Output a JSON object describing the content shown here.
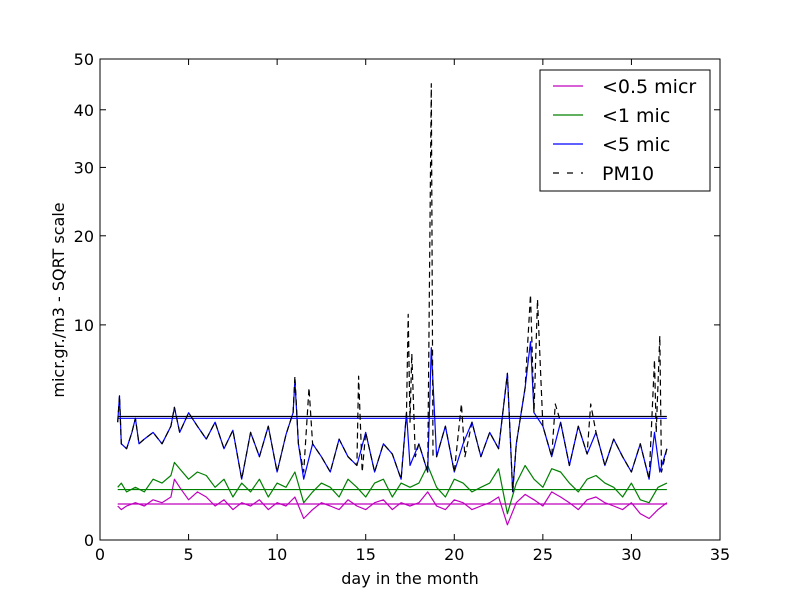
{
  "chart_data": {
    "type": "line",
    "title": "",
    "xlabel": "day in the month",
    "ylabel": "micr.gr./m3 - SQRT scale",
    "y_scale": "sqrt",
    "xlim": [
      0,
      35
    ],
    "ylim": [
      0,
      50
    ],
    "x_ticks": [
      0,
      5,
      10,
      15,
      20,
      25,
      30,
      35
    ],
    "y_ticks": [
      0,
      10,
      20,
      30,
      40,
      50
    ],
    "grid": false,
    "legend_position": "top-right",
    "series": [
      {
        "name": "<0.5 micr",
        "color": "#bf00bf",
        "style": "solid",
        "mean": 0.28,
        "x": [
          1.0,
          1.2,
          1.5,
          2.0,
          2.5,
          3.0,
          3.5,
          4.0,
          4.2,
          4.5,
          5.0,
          5.5,
          6.0,
          6.5,
          7.0,
          7.5,
          8.0,
          8.5,
          9.0,
          9.5,
          10.0,
          10.5,
          11.0,
          11.5,
          12.0,
          12.5,
          13.0,
          13.5,
          14.0,
          14.5,
          15.0,
          15.5,
          16.0,
          16.5,
          17.0,
          17.5,
          18.0,
          18.5,
          19.0,
          19.5,
          20.0,
          20.5,
          21.0,
          21.5,
          22.0,
          22.5,
          23.0,
          23.5,
          24.0,
          24.5,
          25.0,
          25.5,
          26.0,
          26.5,
          27.0,
          27.5,
          28.0,
          28.5,
          29.0,
          29.5,
          30.0,
          30.5,
          31.0,
          31.5,
          32.0
        ],
        "y": [
          0.25,
          0.2,
          0.25,
          0.3,
          0.25,
          0.35,
          0.3,
          0.4,
          0.8,
          0.6,
          0.35,
          0.5,
          0.4,
          0.25,
          0.35,
          0.2,
          0.3,
          0.25,
          0.35,
          0.2,
          0.3,
          0.25,
          0.4,
          0.1,
          0.2,
          0.3,
          0.25,
          0.2,
          0.35,
          0.25,
          0.2,
          0.3,
          0.35,
          0.2,
          0.3,
          0.25,
          0.3,
          0.5,
          0.25,
          0.2,
          0.35,
          0.3,
          0.2,
          0.25,
          0.3,
          0.4,
          0.05,
          0.3,
          0.45,
          0.35,
          0.25,
          0.5,
          0.4,
          0.3,
          0.2,
          0.35,
          0.4,
          0.3,
          0.25,
          0.2,
          0.3,
          0.15,
          0.1,
          0.2,
          0.3
        ]
      },
      {
        "name": "<1 mic",
        "color": "#008000",
        "style": "solid",
        "mean": 0.55,
        "x": [
          1.0,
          1.2,
          1.5,
          2.0,
          2.5,
          3.0,
          3.5,
          4.0,
          4.2,
          4.5,
          5.0,
          5.5,
          6.0,
          6.5,
          7.0,
          7.5,
          8.0,
          8.5,
          9.0,
          9.5,
          10.0,
          10.5,
          11.0,
          11.5,
          12.0,
          12.5,
          13.0,
          13.5,
          14.0,
          14.5,
          15.0,
          15.5,
          16.0,
          16.5,
          17.0,
          17.5,
          18.0,
          18.5,
          19.0,
          19.5,
          20.0,
          20.5,
          21.0,
          21.5,
          22.0,
          22.5,
          23.0,
          23.5,
          24.0,
          24.5,
          25.0,
          25.5,
          26.0,
          26.5,
          27.0,
          27.5,
          28.0,
          28.5,
          29.0,
          29.5,
          30.0,
          30.5,
          31.0,
          31.5,
          32.0
        ],
        "y": [
          0.6,
          0.7,
          0.5,
          0.6,
          0.5,
          0.8,
          0.7,
          0.9,
          1.3,
          1.1,
          0.8,
          1.0,
          0.9,
          0.6,
          0.8,
          0.4,
          0.7,
          0.5,
          0.8,
          0.4,
          0.7,
          0.6,
          1.0,
          0.3,
          0.5,
          0.7,
          0.6,
          0.4,
          0.8,
          0.6,
          0.4,
          0.7,
          0.8,
          0.4,
          0.7,
          0.6,
          0.7,
          1.2,
          0.6,
          0.4,
          0.8,
          0.7,
          0.5,
          0.6,
          0.7,
          1.1,
          0.15,
          0.7,
          1.2,
          0.8,
          0.6,
          1.1,
          1.0,
          0.7,
          0.5,
          0.8,
          0.9,
          0.7,
          0.6,
          0.4,
          0.7,
          0.35,
          0.3,
          0.6,
          0.7
        ]
      },
      {
        "name": "<5 mic",
        "color": "#0000ff",
        "style": "solid",
        "mean": 3.2,
        "x": [
          1.0,
          1.1,
          1.2,
          1.5,
          1.8,
          2.0,
          2.2,
          2.5,
          3.0,
          3.5,
          4.0,
          4.2,
          4.5,
          5.0,
          5.5,
          6.0,
          6.5,
          7.0,
          7.5,
          8.0,
          8.5,
          9.0,
          9.5,
          10.0,
          10.5,
          10.9,
          11.0,
          11.2,
          11.5,
          12.0,
          12.5,
          13.0,
          13.5,
          14.0,
          14.5,
          15.0,
          15.5,
          16.0,
          16.5,
          17.0,
          17.3,
          17.5,
          18.0,
          18.5,
          18.7,
          19.0,
          19.5,
          20.0,
          20.5,
          21.0,
          21.5,
          22.0,
          22.5,
          23.0,
          23.3,
          23.5,
          24.0,
          24.3,
          24.5,
          25.0,
          25.5,
          26.0,
          26.5,
          27.0,
          27.5,
          28.0,
          28.5,
          29.0,
          29.5,
          30.0,
          30.5,
          31.0,
          31.3,
          31.6,
          32.0
        ],
        "y": [
          3.0,
          4.5,
          2.0,
          1.8,
          2.5,
          3.2,
          2.0,
          2.2,
          2.5,
          2.0,
          2.8,
          3.8,
          2.5,
          3.5,
          2.8,
          2.2,
          3.0,
          1.8,
          2.6,
          0.8,
          2.5,
          1.5,
          2.8,
          1.0,
          2.4,
          3.5,
          5.5,
          2.0,
          0.8,
          2.0,
          1.5,
          1.0,
          2.2,
          1.5,
          1.2,
          2.5,
          1.0,
          2.0,
          1.6,
          0.8,
          3.5,
          1.2,
          2.0,
          1.0,
          8.0,
          1.5,
          2.8,
          1.0,
          2.0,
          3.0,
          1.5,
          2.5,
          1.8,
          6.0,
          0.5,
          2.0,
          5.0,
          8.5,
          3.5,
          2.8,
          1.5,
          3.0,
          1.2,
          2.8,
          1.6,
          2.5,
          1.2,
          2.2,
          1.5,
          1.0,
          2.0,
          0.8,
          2.5,
          1.0,
          1.8
        ]
      },
      {
        "name": "PM10",
        "color": "#000000",
        "style": "dashed",
        "mean": 3.3,
        "x": [
          1.0,
          1.1,
          1.2,
          1.5,
          1.8,
          2.0,
          2.2,
          2.5,
          3.0,
          3.5,
          4.0,
          4.2,
          4.5,
          5.0,
          5.5,
          6.0,
          6.5,
          7.0,
          7.5,
          8.0,
          8.5,
          9.0,
          9.5,
          10.0,
          10.5,
          10.9,
          11.0,
          11.2,
          11.5,
          11.8,
          12.0,
          12.5,
          13.0,
          13.5,
          14.0,
          14.5,
          14.6,
          14.8,
          15.0,
          15.5,
          16.0,
          16.5,
          17.0,
          17.3,
          17.4,
          17.5,
          17.6,
          17.8,
          18.0,
          18.5,
          18.7,
          18.8,
          19.0,
          19.5,
          20.0,
          20.4,
          20.6,
          21.0,
          21.5,
          22.0,
          22.5,
          23.0,
          23.3,
          23.5,
          24.0,
          24.3,
          24.5,
          24.7,
          25.0,
          25.5,
          25.7,
          26.0,
          26.5,
          27.0,
          27.5,
          27.7,
          28.0,
          28.5,
          29.0,
          29.5,
          30.0,
          30.5,
          31.0,
          31.3,
          31.4,
          31.6,
          31.7,
          32.0
        ],
        "y": [
          3.0,
          4.5,
          2.0,
          1.8,
          2.5,
          3.2,
          2.0,
          2.2,
          2.5,
          2.0,
          2.8,
          3.8,
          2.5,
          3.5,
          2.8,
          2.2,
          3.0,
          1.8,
          2.6,
          0.8,
          2.5,
          1.5,
          2.8,
          1.0,
          2.4,
          3.5,
          5.8,
          2.0,
          1.0,
          5.0,
          2.0,
          1.5,
          1.0,
          2.2,
          1.5,
          1.2,
          5.8,
          1.0,
          2.5,
          1.0,
          2.0,
          1.6,
          0.8,
          3.5,
          11.0,
          3.0,
          7.5,
          1.5,
          2.0,
          1.0,
          45.0,
          1.5,
          1.5,
          2.8,
          1.0,
          4.0,
          1.5,
          3.0,
          1.5,
          2.5,
          1.8,
          6.0,
          0.5,
          2.0,
          5.0,
          13.0,
          3.5,
          12.5,
          2.8,
          1.5,
          4.0,
          3.0,
          1.2,
          2.8,
          1.6,
          4.0,
          2.5,
          1.2,
          2.2,
          1.5,
          1.0,
          2.0,
          0.8,
          7.0,
          2.5,
          9.0,
          1.0,
          1.8
        ]
      }
    ]
  }
}
